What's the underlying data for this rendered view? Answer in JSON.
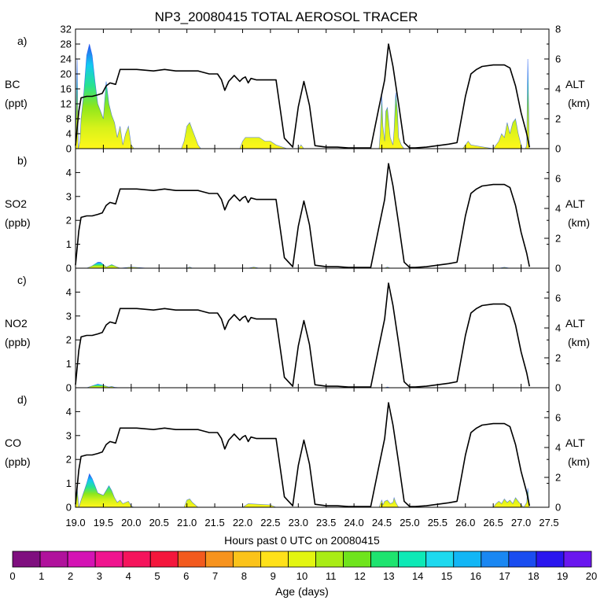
{
  "title": "NP3_20080415 TOTAL AEROSOL TRACER",
  "chart_data": {
    "type": "area",
    "title": "NP3_20080415 TOTAL AEROSOL TRACER",
    "xlabel": "Hours past 0 UTC on 20080415",
    "xlim": [
      19.0,
      27.5
    ],
    "xticks": [
      "19.0",
      "19.5",
      "20.0",
      "20.5",
      "21.0",
      "21.5",
      "22.0",
      "22.5",
      "23.0",
      "23.5",
      "24.0",
      "24.5",
      "25.0",
      "25.5",
      "26.0",
      "26.5",
      "27.0",
      "27.5"
    ],
    "altitude_km": {
      "x": [
        19.0,
        19.06,
        19.1,
        19.2,
        19.3,
        19.4,
        19.48,
        19.55,
        19.62,
        19.72,
        19.8,
        20.1,
        20.4,
        20.6,
        20.8,
        21.2,
        21.4,
        21.55,
        21.62,
        21.68,
        21.75,
        21.85,
        21.95,
        22.0,
        22.05,
        22.1,
        22.15,
        22.25,
        22.45,
        22.6,
        22.75,
        22.9,
        23.0,
        23.1,
        23.2,
        23.3,
        23.5,
        23.7,
        23.9,
        24.1,
        24.3,
        24.45,
        24.55,
        24.62,
        24.7,
        24.8,
        24.9,
        25.0,
        25.1,
        25.3,
        25.5,
        25.7,
        25.85,
        26.0,
        26.1,
        26.2,
        26.3,
        26.5,
        26.7,
        26.8,
        26.9,
        27.0,
        27.1,
        27.15
      ],
      "y": [
        0.2,
        2.5,
        3.4,
        3.5,
        3.5,
        3.6,
        3.7,
        4.2,
        4.4,
        4.3,
        5.3,
        5.3,
        5.2,
        5.3,
        5.2,
        5.2,
        5.0,
        5.0,
        4.6,
        3.9,
        4.5,
        4.9,
        4.5,
        4.7,
        4.8,
        4.4,
        4.7,
        4.6,
        4.6,
        4.6,
        0.7,
        0.1,
        2.8,
        4.5,
        2.9,
        0.2,
        0.1,
        0.1,
        0.05,
        0.05,
        0.05,
        2.8,
        4.6,
        7.0,
        5.5,
        3.0,
        0.4,
        0.05,
        0.05,
        0.1,
        0.2,
        0.3,
        0.4,
        3.5,
        5.0,
        5.3,
        5.5,
        5.6,
        5.6,
        5.4,
        4.2,
        2.4,
        1.0,
        0.1
      ]
    },
    "panels": [
      {
        "letter": "a)",
        "variable": "BC",
        "unit": "(ppt)",
        "ylim": [
          0,
          32
        ],
        "yticks": [
          "0",
          "4",
          "8",
          "12",
          "16",
          "20",
          "24",
          "28",
          "32"
        ],
        "alt_ylim": [
          0,
          8
        ],
        "alt_yticks": [
          "0",
          "2",
          "4",
          "6",
          "8"
        ],
        "alt_label": "ALT",
        "alt_unit": "(km)",
        "tracer": {
          "x": [
            19.0,
            19.03,
            19.05,
            19.08,
            19.1,
            19.15,
            19.2,
            19.25,
            19.3,
            19.35,
            19.4,
            19.45,
            19.5,
            19.55,
            19.6,
            19.65,
            19.7,
            19.75,
            19.8,
            19.85,
            19.9,
            19.95,
            20.0,
            20.05,
            20.1,
            20.2,
            20.5,
            20.9,
            20.95,
            21.0,
            21.05,
            21.1,
            21.15,
            21.2,
            21.25,
            21.3,
            21.5,
            21.95,
            22.0,
            22.05,
            22.1,
            22.2,
            22.3,
            22.4,
            22.45,
            22.5,
            22.6,
            22.8,
            22.95,
            23.0,
            23.05,
            23.1,
            23.5,
            24.2,
            24.45,
            24.47,
            24.5,
            24.52,
            24.55,
            24.57,
            24.6,
            24.65,
            24.7,
            24.72,
            24.75,
            24.78,
            24.8,
            24.85,
            24.9,
            25.5,
            25.95,
            26.0,
            26.05,
            26.1,
            26.5,
            26.6,
            26.65,
            26.7,
            26.75,
            26.8,
            26.85,
            26.9,
            26.95,
            27.0,
            27.02,
            27.05,
            27.08,
            27.1,
            27.12,
            27.15
          ],
          "y": [
            0,
            24,
            0,
            2,
            8,
            15,
            25,
            28,
            25,
            18,
            12,
            10,
            8,
            18,
            12,
            9,
            7,
            3,
            6,
            1,
            4,
            6,
            1,
            0,
            0,
            0,
            0,
            0,
            2,
            6,
            7,
            5,
            3,
            1,
            0,
            0,
            0,
            0,
            2,
            3,
            3,
            3,
            3,
            2,
            2,
            2,
            1,
            0,
            0,
            0,
            1,
            0,
            0,
            0,
            0,
            4,
            14,
            6,
            2,
            10,
            11,
            3,
            1,
            5,
            15,
            10,
            3,
            1,
            0,
            0,
            0,
            1,
            2,
            1,
            0,
            2,
            4,
            3,
            7,
            4,
            7,
            8,
            4,
            1,
            0,
            0,
            0,
            1,
            24,
            0
          ]
        }
      },
      {
        "letter": "b)",
        "variable": "SO2",
        "unit": "(ppb)",
        "ylim": [
          0,
          5
        ],
        "yticks": [
          "0",
          "1",
          "2",
          "3",
          "4"
        ],
        "alt_ylim": [
          0,
          8
        ],
        "alt_yticks": [
          "0",
          "2",
          "4",
          "6"
        ],
        "alt_label": "ALT",
        "alt_unit": "(km)",
        "tracer": {
          "x": [
            19.0,
            19.2,
            19.3,
            19.4,
            19.45,
            19.5,
            19.55,
            19.6,
            19.65,
            19.7,
            19.8,
            20.0,
            20.3,
            21.0,
            21.05,
            21.1,
            22.1,
            22.2,
            22.3,
            24.55,
            24.6,
            24.65,
            26.6,
            26.7,
            26.8
          ],
          "y": [
            0,
            0,
            0.1,
            0.25,
            0.25,
            0.15,
            0.05,
            0.1,
            0.15,
            0.1,
            0,
            0.05,
            0,
            0,
            0.05,
            0,
            0,
            0.05,
            0,
            0,
            0.05,
            0,
            0,
            0.04,
            0
          ]
        }
      },
      {
        "letter": "c)",
        "variable": "NO2",
        "unit": "(ppb)",
        "ylim": [
          0,
          5
        ],
        "yticks": [
          "0",
          "1",
          "2",
          "3",
          "4"
        ],
        "alt_ylim": [
          0,
          8
        ],
        "alt_yticks": [
          "0",
          "2",
          "4",
          "6"
        ],
        "alt_label": "ALT",
        "alt_unit": "(km)",
        "tracer": {
          "x": [
            19.0,
            19.2,
            19.3,
            19.4,
            19.5,
            19.6,
            19.65,
            19.7,
            19.8,
            24.55,
            24.6,
            24.65
          ],
          "y": [
            0,
            0,
            0.08,
            0.15,
            0.1,
            0.03,
            0.06,
            0.02,
            0,
            0,
            0.03,
            0
          ]
        }
      },
      {
        "letter": "d)",
        "variable": "CO",
        "unit": "(ppb)",
        "ylim": [
          0,
          5
        ],
        "yticks": [
          "0",
          "1",
          "2",
          "3",
          "4"
        ],
        "alt_ylim": [
          0,
          8
        ],
        "alt_yticks": [
          "0",
          "2",
          "4",
          "6"
        ],
        "alt_label": "ALT",
        "alt_unit": "(km)",
        "tracer": {
          "x": [
            19.0,
            19.03,
            19.06,
            19.1,
            19.2,
            19.25,
            19.3,
            19.35,
            19.4,
            19.5,
            19.55,
            19.6,
            19.65,
            19.7,
            19.75,
            19.8,
            19.85,
            19.9,
            19.95,
            20.0,
            20.05,
            20.5,
            20.95,
            21.0,
            21.05,
            21.1,
            21.2,
            22.0,
            22.1,
            22.5,
            22.6,
            24.45,
            24.5,
            24.52,
            24.55,
            24.6,
            24.65,
            24.7,
            24.72,
            24.75,
            24.8,
            26.5,
            26.55,
            26.6,
            26.65,
            26.7,
            26.75,
            26.8,
            26.85,
            26.9,
            26.95,
            27.0,
            27.05,
            27.1,
            27.12,
            27.15
          ],
          "y": [
            0,
            0.8,
            0,
            0.3,
            1.0,
            1.4,
            1.2,
            0.9,
            0.6,
            0.5,
            0.7,
            0.9,
            0.7,
            0.4,
            0.2,
            0.3,
            0.15,
            0.2,
            0.25,
            0.05,
            0,
            0,
            0,
            0.3,
            0.35,
            0.2,
            0,
            0,
            0.15,
            0.1,
            0,
            0,
            0.3,
            0.1,
            0.25,
            0.3,
            0.15,
            0.2,
            0.4,
            0.2,
            0,
            0,
            0.15,
            0.25,
            0.15,
            0.35,
            0.2,
            0.3,
            0.15,
            0.4,
            0.25,
            0.1,
            0,
            0.2,
            0.8,
            0
          ]
        }
      }
    ],
    "colorbar": {
      "label": "Age (days)",
      "ticks": [
        "0",
        "1",
        "2",
        "3",
        "4",
        "5",
        "6",
        "7",
        "8",
        "9",
        "10",
        "11",
        "12",
        "13",
        "14",
        "15",
        "16",
        "17",
        "18",
        "19",
        "20"
      ],
      "colors": [
        "#7f0f7f",
        "#b0129c",
        "#d413b4",
        "#f0148f",
        "#f5145c",
        "#f4163c",
        "#f25a1e",
        "#f7931e",
        "#fbc31a",
        "#ffe119",
        "#e3f510",
        "#a9ec15",
        "#6fe41c",
        "#1ee46f",
        "#0de9b6",
        "#1ed9ef",
        "#12b6f5",
        "#1a87f2",
        "#1a4df0",
        "#2a16ef",
        "#6a17ef"
      ]
    }
  }
}
